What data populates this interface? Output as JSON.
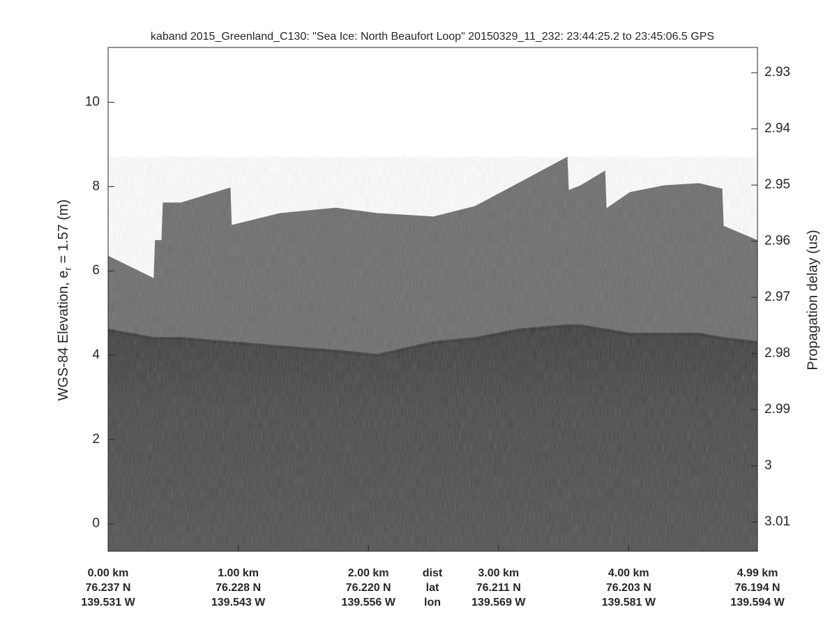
{
  "chart_data": {
    "type": "echogram",
    "title": "kaband 2015_Greenland_C130: \"Sea Ice: North Beaufort Loop\"  20150329_11_232: 23:44:25.2 to 23:45:06.5 GPS",
    "ylabel": {
      "text": "WGS-84 Elevation, e",
      "subscript": "r",
      "tail": " = 1.57 (m)"
    },
    "y2label": "Propagation delay (us)",
    "xlim": [
      0,
      4.99
    ],
    "ylim": [
      -0.65,
      11.3
    ],
    "yticks": [
      0,
      2,
      4,
      6,
      8,
      10
    ],
    "y2lim": [
      3.0152,
      2.9255
    ],
    "y2ticks": [
      2.93,
      2.94,
      2.95,
      2.96,
      2.97,
      2.98,
      2.99,
      3,
      3.01
    ],
    "xticks": [
      {
        "value": 0,
        "label": "0.00 km"
      },
      {
        "value": 1,
        "label": "1.00 km"
      },
      {
        "value": 2,
        "label": "2.00 km"
      },
      {
        "value": 3,
        "label": "3.00 km"
      },
      {
        "value": 4,
        "label": "4.00 km"
      },
      {
        "value": 4.99,
        "label": "4.99 km"
      }
    ],
    "lat_labels": [
      "76.237 N",
      "76.228 N",
      "76.220 N",
      "76.211 N",
      "76.203 N",
      "76.194 N"
    ],
    "lon_labels": [
      "139.531 W",
      "139.543 W",
      "139.556 W",
      "139.569 W",
      "139.581 W",
      "139.594 W"
    ],
    "row_labels": [
      "dist",
      "lat",
      "lon"
    ],
    "x": [
      0,
      0.35,
      0.36,
      0.41,
      0.42,
      0.56,
      0.94,
      0.95,
      1.32,
      1.75,
      2.07,
      2.5,
      2.82,
      3.15,
      3.53,
      3.54,
      3.63,
      3.82,
      3.83,
      4.01,
      4.27,
      4.54,
      4.72,
      4.73,
      4.99
    ],
    "series": [
      {
        "color": "#6a6a6a",
        "values": [
          6.36,
          5.83,
          6.73,
          6.73,
          7.62,
          7.62,
          7.98,
          7.09,
          7.37,
          7.5,
          7.37,
          7.29,
          7.54,
          8.08,
          8.71,
          7.92,
          8.03,
          8.38,
          7.49,
          7.87,
          8.03,
          8.08,
          7.95,
          7.07,
          6.73
        ]
      },
      {
        "color": "#454545",
        "values": [
          4.6,
          4.4,
          4.4,
          4.4,
          4.4,
          4.4,
          4.3,
          4.3,
          4.2,
          4.1,
          4.0,
          4.3,
          4.4,
          4.6,
          4.7,
          4.7,
          4.7,
          4.6,
          4.6,
          4.5,
          4.5,
          4.5,
          4.4,
          4.4,
          4.3
        ]
      }
    ]
  }
}
